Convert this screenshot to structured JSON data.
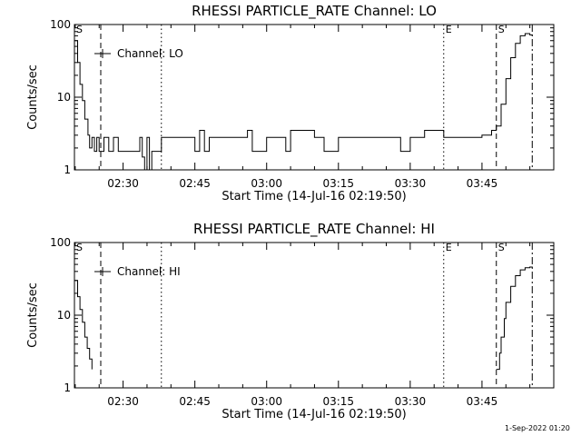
{
  "footer": {
    "timestamp": "1-Sep-2022 01:20"
  },
  "chart_data": [
    {
      "type": "line",
      "title": "RHESSI PARTICLE_RATE Channel: LO",
      "xlabel": "Start Time (14-Jul-16 02:19:50)",
      "ylabel": "Counts/sec",
      "yscale": "log",
      "ylim": [
        1,
        100
      ],
      "xlim": [
        "02:19:50",
        "04:00:00"
      ],
      "xticks": [
        "02:30",
        "02:45",
        "03:00",
        "03:15",
        "03:30",
        "03:45"
      ],
      "yticks": [
        "1",
        "10",
        "100"
      ],
      "legend": "Channel: LO",
      "legend_position": "top-left",
      "markers": [
        {
          "time": "02:19:50",
          "label": "S",
          "style": "solid"
        },
        {
          "time": "02:25:20",
          "label": "",
          "style": "dashed"
        },
        {
          "time": "02:38:00",
          "label": "",
          "style": "dotted"
        },
        {
          "time": "03:37:00",
          "label": "E",
          "style": "dotted"
        },
        {
          "time": "03:48:00",
          "label": "S",
          "style": "dashed"
        },
        {
          "time": "03:55:30",
          "label": "",
          "style": "dashdot"
        }
      ],
      "series": [
        {
          "x": [
            "02:19:50",
            "02:20:30",
            "02:21:00",
            "02:21:30",
            "02:22:00",
            "02:22:40",
            "02:23:00",
            "02:23:30",
            "02:24:00",
            "02:24:30",
            "02:25:00",
            "02:26:00",
            "02:27:00",
            "02:28:00",
            "02:29:00",
            "02:30:00",
            "02:31:00",
            "02:32:00",
            "02:33:00",
            "02:33:30",
            "02:34:00",
            "02:34:30",
            "02:35:00",
            "02:35:30",
            "02:36:00",
            "02:37:00",
            "02:38:00",
            "02:44:00",
            "02:45:00",
            "02:46:00",
            "02:47:00",
            "02:48:00",
            "02:50:00",
            "02:55:00",
            "02:56:00",
            "02:57:00",
            "03:00:00",
            "03:03:00",
            "03:04:00",
            "03:05:00",
            "03:10:00",
            "03:12:00",
            "03:15:00",
            "03:20:00",
            "03:25:00",
            "03:28:00",
            "03:30:00",
            "03:33:00",
            "03:37:00",
            "03:40:00",
            "03:43:00",
            "03:45:00",
            "03:47:00",
            "03:48:00",
            "03:49:00",
            "03:50:00",
            "03:51:00",
            "03:52:00",
            "03:53:00",
            "03:54:00",
            "03:55:00",
            "03:55:30"
          ],
          "y": [
            60,
            30,
            15,
            9,
            5,
            3,
            2,
            2.8,
            1.8,
            2.8,
            1.8,
            2.8,
            1.8,
            2.8,
            1.8,
            1.8,
            1.8,
            1.8,
            1.8,
            2.8,
            1.5,
            1,
            2.8,
            1,
            1.8,
            1.8,
            2.8,
            2.8,
            1.8,
            3.5,
            1.8,
            2.8,
            2.8,
            2.8,
            3.5,
            1.8,
            2.8,
            2.8,
            1.8,
            3.5,
            2.8,
            1.8,
            2.8,
            2.8,
            2.8,
            1.8,
            2.8,
            3.5,
            2.8,
            2.8,
            2.8,
            3,
            3.5,
            4,
            8,
            18,
            35,
            55,
            70,
            75,
            72,
            70
          ]
        }
      ]
    },
    {
      "type": "line",
      "title": "RHESSI PARTICLE_RATE Channel: HI",
      "xlabel": "Start Time (14-Jul-16 02:19:50)",
      "ylabel": "Counts/sec",
      "yscale": "log",
      "ylim": [
        1,
        100
      ],
      "xlim": [
        "02:19:50",
        "04:00:00"
      ],
      "xticks": [
        "02:30",
        "02:45",
        "03:00",
        "03:15",
        "03:30",
        "03:45"
      ],
      "yticks": [
        "1",
        "10",
        "100"
      ],
      "legend": "Channel: HI",
      "legend_position": "top-left",
      "markers": [
        {
          "time": "02:19:50",
          "label": "S",
          "style": "solid"
        },
        {
          "time": "02:25:20",
          "label": "",
          "style": "dashed"
        },
        {
          "time": "02:38:00",
          "label": "",
          "style": "dotted"
        },
        {
          "time": "03:37:00",
          "label": "E",
          "style": "dotted"
        },
        {
          "time": "03:48:00",
          "label": "S",
          "style": "dashed"
        },
        {
          "time": "03:55:30",
          "label": "",
          "style": "dashdot"
        }
      ],
      "series": [
        {
          "x": [
            "02:19:50",
            "02:20:30",
            "02:21:00",
            "02:21:30",
            "02:22:00",
            "02:22:30",
            "02:23:00",
            "02:23:30"
          ],
          "y": [
            30,
            18,
            12,
            8,
            5,
            3.5,
            2.5,
            1.8
          ]
        },
        {
          "x": [
            "03:48:00",
            "03:48:40",
            "03:49:00",
            "03:49:40",
            "03:50:00",
            "03:51:00",
            "03:52:00",
            "03:53:00",
            "03:54:00",
            "03:55:00",
            "03:55:30"
          ],
          "y": [
            1.8,
            3,
            5,
            9,
            15,
            25,
            35,
            42,
            45,
            46,
            45
          ]
        }
      ]
    }
  ]
}
